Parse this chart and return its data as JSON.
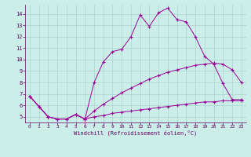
{
  "xlabel": "Windchill (Refroidissement éolien,°C)",
  "background_color": "#cceee8",
  "grid_color": "#aad4ce",
  "line_color": "#990099",
  "xlim": [
    -0.5,
    23.5
  ],
  "ylim": [
    4.5,
    14.8
  ],
  "xticks": [
    0,
    1,
    2,
    3,
    4,
    5,
    6,
    7,
    8,
    9,
    10,
    11,
    12,
    13,
    14,
    15,
    16,
    17,
    18,
    19,
    20,
    21,
    22,
    23
  ],
  "yticks": [
    5,
    6,
    7,
    8,
    9,
    10,
    11,
    12,
    13,
    14
  ],
  "line1_x": [
    0,
    1,
    2,
    3,
    4,
    5,
    6,
    7,
    8,
    9,
    10,
    11,
    12,
    13,
    14,
    15,
    16,
    17,
    18,
    19,
    20,
    21,
    22,
    23
  ],
  "line1_y": [
    6.8,
    5.9,
    5.0,
    4.8,
    4.8,
    5.2,
    4.8,
    8.0,
    9.8,
    10.7,
    10.9,
    12.0,
    13.9,
    12.9,
    14.1,
    14.5,
    13.5,
    13.3,
    12.0,
    10.3,
    9.6,
    7.9,
    6.5,
    6.5
  ],
  "line2_x": [
    0,
    1,
    2,
    3,
    4,
    5,
    6,
    7,
    8,
    9,
    10,
    11,
    12,
    13,
    14,
    15,
    16,
    17,
    18,
    19,
    20,
    21,
    22,
    23
  ],
  "line2_y": [
    6.8,
    5.9,
    5.0,
    4.8,
    4.8,
    5.2,
    4.8,
    5.5,
    6.1,
    6.6,
    7.1,
    7.5,
    7.9,
    8.3,
    8.6,
    8.9,
    9.1,
    9.3,
    9.5,
    9.6,
    9.7,
    9.6,
    9.1,
    8.0
  ],
  "line3_x": [
    0,
    1,
    2,
    3,
    4,
    5,
    6,
    7,
    8,
    9,
    10,
    11,
    12,
    13,
    14,
    15,
    16,
    17,
    18,
    19,
    20,
    21,
    22,
    23
  ],
  "line3_y": [
    6.8,
    5.9,
    5.0,
    4.8,
    4.8,
    5.2,
    4.8,
    5.0,
    5.1,
    5.3,
    5.4,
    5.5,
    5.6,
    5.7,
    5.8,
    5.9,
    6.0,
    6.1,
    6.2,
    6.3,
    6.3,
    6.4,
    6.4,
    6.4
  ]
}
